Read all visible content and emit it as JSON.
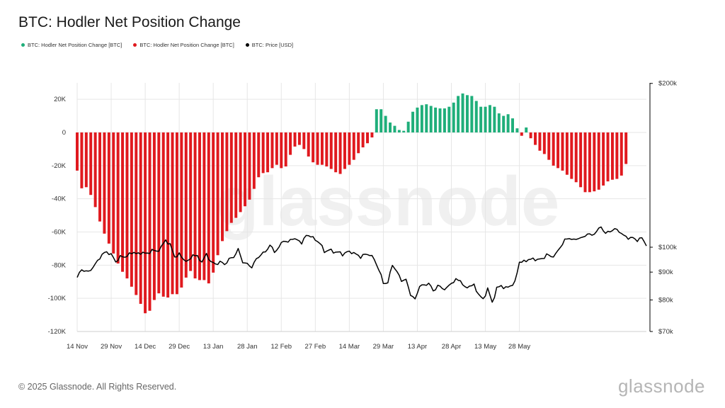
{
  "title": "BTC: Hodler Net Position Change",
  "legend": [
    {
      "label": "BTC: Hodler Net Position Change [BTC]",
      "color": "#1fae7a"
    },
    {
      "label": "BTC: Hodler Net Position Change [BTC]",
      "color": "#e0191e"
    },
    {
      "label": "BTC: Price [USD]",
      "color": "#000000"
    }
  ],
  "footer": "© 2025 Glassnode. All Rights Reserved.",
  "brand": "glassnode",
  "watermark": "glassnode",
  "colors": {
    "positive": "#1fae7a",
    "negative": "#e0191e",
    "price": "#000000",
    "grid": "#e6e6e6"
  },
  "chart_data": {
    "type": "bar",
    "x_start": "2024-11-14",
    "x_end": "2025-06-06",
    "x_tick_labels": [
      "14 Nov",
      "29 Nov",
      "14 Dec",
      "29 Dec",
      "13 Jan",
      "28 Jan",
      "12 Feb",
      "27 Feb",
      "14 Mar",
      "29 Mar",
      "13 Apr",
      "28 Apr",
      "13 May",
      "28 May"
    ],
    "left_axis": {
      "ylim": [
        -120000,
        30000
      ],
      "tick_labels": [
        "20K",
        "0",
        "-20K",
        "-40K",
        "-60K",
        "-80K",
        "-100K",
        "-120K"
      ],
      "tick_values": [
        20000,
        0,
        -20000,
        -40000,
        -60000,
        -80000,
        -100000,
        -120000
      ]
    },
    "right_axis": {
      "scale": "log",
      "ylim": [
        70000,
        200000
      ],
      "tick_labels": [
        "$200k",
        "$100k",
        "$90k",
        "$80k",
        "$70k"
      ],
      "tick_values": [
        200000,
        100000,
        90000,
        80000,
        70000
      ]
    },
    "grid": true,
    "legend_position": "top-left",
    "series": [
      {
        "type": "bar",
        "axis": "left",
        "key_points": [
          [
            0,
            -23000
          ],
          [
            1,
            -34000
          ],
          [
            4,
            -33000
          ],
          [
            7,
            -40000
          ],
          [
            9,
            -50000
          ],
          [
            12,
            -61000
          ],
          [
            15,
            -70000
          ],
          [
            19,
            -82000
          ],
          [
            22,
            -88000
          ],
          [
            26,
            -98000
          ],
          [
            29,
            -106000
          ],
          [
            31,
            -112000
          ],
          [
            33,
            -103000
          ],
          [
            35,
            -99000
          ],
          [
            37,
            -95000
          ],
          [
            39,
            -103000
          ],
          [
            41,
            -96000
          ],
          [
            43,
            -99000
          ],
          [
            45,
            -96000
          ],
          [
            47,
            -91000
          ],
          [
            49,
            -84000
          ],
          [
            51,
            -83000
          ],
          [
            53,
            -93000
          ],
          [
            55,
            -85000
          ],
          [
            57,
            -93000
          ],
          [
            59,
            -89000
          ],
          [
            61,
            -80000
          ],
          [
            63,
            -68000
          ],
          [
            65,
            -63000
          ],
          [
            67,
            -56000
          ],
          [
            69,
            -53000
          ],
          [
            71,
            -50000
          ],
          [
            73,
            -46000
          ],
          [
            75,
            -43000
          ],
          [
            77,
            -38000
          ],
          [
            79,
            -30000
          ],
          [
            81,
            -24000
          ],
          [
            83,
            -25000
          ],
          [
            85,
            -23000
          ],
          [
            87,
            -20000
          ],
          [
            89,
            -19000
          ],
          [
            91,
            -24000
          ],
          [
            93,
            -17000
          ],
          [
            95,
            -10000
          ],
          [
            97,
            -7000
          ],
          [
            99,
            -8000
          ],
          [
            101,
            -12000
          ],
          [
            103,
            -17000
          ],
          [
            105,
            -19000
          ],
          [
            107,
            -20000
          ],
          [
            109,
            -19000
          ],
          [
            111,
            -22000
          ],
          [
            113,
            -22000
          ],
          [
            115,
            -26000
          ],
          [
            117,
            -24000
          ],
          [
            119,
            -20000
          ],
          [
            121,
            -19000
          ],
          [
            123,
            -14000
          ],
          [
            125,
            -11000
          ],
          [
            127,
            -7000
          ],
          [
            129,
            -6000
          ],
          [
            130,
            -3000
          ],
          [
            131,
            13000
          ],
          [
            133,
            15000
          ],
          [
            135,
            13000
          ],
          [
            137,
            7000
          ],
          [
            139,
            5000
          ],
          [
            141,
            3000
          ],
          [
            143,
            0
          ],
          [
            145,
            2000
          ],
          [
            147,
            11000
          ],
          [
            149,
            14000
          ],
          [
            151,
            16000
          ],
          [
            153,
            17000
          ],
          [
            155,
            17000
          ],
          [
            157,
            15000
          ],
          [
            159,
            15000
          ],
          [
            161,
            14000
          ],
          [
            163,
            15000
          ],
          [
            165,
            16000
          ],
          [
            167,
            20000
          ],
          [
            169,
            24000
          ],
          [
            171,
            23000
          ],
          [
            173,
            22000
          ],
          [
            175,
            22000
          ],
          [
            177,
            16000
          ],
          [
            179,
            15000
          ],
          [
            181,
            16000
          ],
          [
            183,
            17000
          ],
          [
            185,
            14000
          ],
          [
            187,
            9000
          ],
          [
            189,
            11000
          ],
          [
            191,
            11000
          ],
          [
            193,
            6000
          ],
          [
            195,
            -1000
          ],
          [
            196,
            -2000
          ],
          [
            197,
            -3000
          ],
          [
            198,
            3000
          ],
          [
            199,
            -2000
          ],
          [
            201,
            -5000
          ],
          [
            203,
            -10000
          ],
          [
            205,
            -12000
          ],
          [
            207,
            -14000
          ],
          [
            209,
            -19000
          ],
          [
            211,
            -21000
          ],
          [
            213,
            -22000
          ],
          [
            215,
            -24000
          ],
          [
            217,
            -27000
          ],
          [
            219,
            -29000
          ],
          [
            221,
            -31000
          ],
          [
            223,
            -35000
          ],
          [
            225,
            -37000
          ],
          [
            227,
            -35000
          ],
          [
            229,
            -36000
          ],
          [
            231,
            -33000
          ],
          [
            233,
            -31000
          ],
          [
            235,
            -28000
          ],
          [
            237,
            -29000
          ],
          [
            239,
            -27000
          ],
          [
            241,
            -25000
          ],
          [
            242,
            -19000
          ]
        ]
      },
      {
        "type": "line",
        "name": "BTC: Price [USD]",
        "axis": "right",
        "key_points": [
          [
            0,
            88000
          ],
          [
            2,
            91000
          ],
          [
            5,
            90000
          ],
          [
            8,
            93000
          ],
          [
            11,
            97000
          ],
          [
            13,
            98000
          ],
          [
            15,
            97000
          ],
          [
            17,
            94000
          ],
          [
            19,
            96000
          ],
          [
            21,
            96000
          ],
          [
            23,
            97000
          ],
          [
            25,
            98000
          ],
          [
            27,
            97000
          ],
          [
            29,
            98000
          ],
          [
            31,
            97000
          ],
          [
            33,
            99000
          ],
          [
            35,
            98000
          ],
          [
            37,
            100000
          ],
          [
            39,
            103000
          ],
          [
            41,
            101000
          ],
          [
            43,
            96000
          ],
          [
            45,
            97000
          ],
          [
            47,
            95000
          ],
          [
            49,
            94000
          ],
          [
            51,
            97000
          ],
          [
            53,
            96000
          ],
          [
            55,
            94000
          ],
          [
            57,
            97000
          ],
          [
            59,
            94000
          ],
          [
            61,
            93000
          ],
          [
            63,
            94000
          ],
          [
            65,
            93000
          ],
          [
            67,
            95000
          ],
          [
            69,
            96000
          ],
          [
            71,
            99000
          ],
          [
            73,
            94000
          ],
          [
            75,
            93000
          ],
          [
            77,
            92000
          ],
          [
            79,
            95000
          ],
          [
            81,
            97000
          ],
          [
            83,
            98000
          ],
          [
            85,
            101000
          ],
          [
            87,
            98000
          ],
          [
            89,
            100000
          ],
          [
            91,
            103000
          ],
          [
            93,
            102000
          ],
          [
            95,
            104000
          ],
          [
            97,
            103000
          ],
          [
            99,
            102000
          ],
          [
            101,
            105000
          ],
          [
            103,
            105000
          ],
          [
            105,
            103000
          ],
          [
            107,
            102000
          ],
          [
            109,
            98000
          ],
          [
            111,
            99000
          ],
          [
            113,
            98000
          ],
          [
            115,
            98000
          ],
          [
            117,
            97000
          ],
          [
            119,
            98000
          ],
          [
            121,
            98000
          ],
          [
            123,
            97000
          ],
          [
            125,
            96000
          ],
          [
            127,
            97000
          ],
          [
            129,
            97000
          ],
          [
            131,
            95000
          ],
          [
            133,
            91000
          ],
          [
            135,
            86000
          ],
          [
            137,
            86000
          ],
          [
            139,
            93000
          ],
          [
            141,
            90000
          ],
          [
            143,
            87000
          ],
          [
            145,
            87000
          ],
          [
            147,
            82000
          ],
          [
            149,
            80000
          ],
          [
            151,
            85000
          ],
          [
            153,
            85000
          ],
          [
            155,
            86000
          ],
          [
            157,
            83000
          ],
          [
            159,
            85000
          ],
          [
            161,
            84000
          ],
          [
            163,
            84000
          ],
          [
            165,
            86000
          ],
          [
            167,
            87000
          ],
          [
            169,
            87000
          ],
          [
            171,
            84000
          ],
          [
            173,
            85000
          ],
          [
            175,
            85000
          ],
          [
            177,
            82000
          ],
          [
            179,
            80000
          ],
          [
            181,
            84000
          ],
          [
            183,
            79000
          ],
          [
            185,
            84000
          ],
          [
            187,
            85000
          ],
          [
            189,
            84000
          ],
          [
            191,
            85000
          ],
          [
            193,
            86000
          ],
          [
            195,
            94000
          ],
          [
            197,
            94000
          ],
          [
            199,
            95000
          ],
          [
            201,
            95000
          ],
          [
            203,
            95000
          ],
          [
            205,
            95000
          ],
          [
            207,
            97000
          ],
          [
            209,
            96000
          ],
          [
            211,
            97000
          ],
          [
            213,
            100000
          ],
          [
            215,
            103000
          ],
          [
            217,
            104000
          ],
          [
            219,
            103000
          ],
          [
            221,
            104000
          ],
          [
            223,
            104000
          ],
          [
            225,
            106000
          ],
          [
            227,
            105000
          ],
          [
            229,
            107000
          ],
          [
            231,
            109000
          ],
          [
            233,
            106000
          ],
          [
            235,
            107000
          ],
          [
            237,
            108000
          ],
          [
            239,
            107000
          ],
          [
            241,
            105000
          ],
          [
            243,
            104000
          ],
          [
            245,
            104000
          ],
          [
            247,
            103000
          ],
          [
            249,
            104000
          ],
          [
            251,
            101000
          ]
        ]
      }
    ]
  }
}
